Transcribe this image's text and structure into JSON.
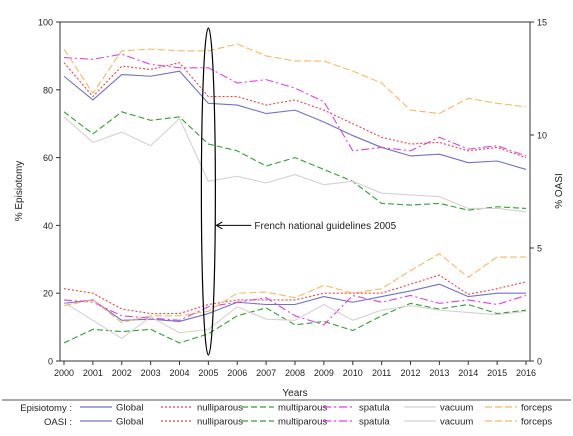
{
  "chart_data": {
    "type": "line",
    "x": [
      2000,
      2001,
      2002,
      2003,
      2004,
      2005,
      2006,
      2007,
      2008,
      2009,
      2010,
      2011,
      2012,
      2013,
      2014,
      2015,
      2016
    ],
    "xlabel": "Years",
    "ylabel_left": "% Episiotomy",
    "ylabel_right": "% OASI",
    "ylim_left": [
      0,
      100
    ],
    "ylim_right": [
      0,
      15
    ],
    "yticks_left": [
      0,
      20,
      40,
      60,
      80,
      100
    ],
    "yticks_right": [
      0,
      5,
      10,
      15
    ],
    "grid": false,
    "annotation": {
      "text": "French national guidelines 2005",
      "x": 2005,
      "y_left": 40
    },
    "legend": {
      "position": "bottom",
      "row1_label": "Episiotomy :",
      "row2_label": "OASI :",
      "entries": [
        "Global",
        "nulliparous",
        "multiparous",
        "spatula",
        "vacuum",
        "forceps"
      ]
    },
    "series_styles": {
      "Global": {
        "color": "#7070d0",
        "dash": ""
      },
      "nulliparous": {
        "color": "#f04040",
        "dash": "2,2"
      },
      "multiparous": {
        "color": "#30a030",
        "dash": "6,3"
      },
      "spatula": {
        "color": "#e040e0",
        "dash": "8,3,2,3"
      },
      "vacuum": {
        "color": "#d8d0d0",
        "dash": ""
      },
      "forceps": {
        "color": "#f8b860",
        "dash": "7,3"
      }
    },
    "series": [
      {
        "group": "Episiotomy",
        "name": "Global",
        "axis": "left",
        "values": [
          84,
          77,
          84.5,
          84,
          85.5,
          76,
          75.5,
          73,
          74,
          70.5,
          66.5,
          63,
          60.5,
          61,
          58.5,
          59,
          56.5
        ]
      },
      {
        "group": "Episiotomy",
        "name": "nulliparous",
        "axis": "left",
        "values": [
          88,
          78,
          87,
          86,
          88,
          78,
          78,
          75.5,
          77,
          74,
          70,
          66,
          64,
          64.5,
          62,
          63,
          60
        ]
      },
      {
        "group": "Episiotomy",
        "name": "multiparous",
        "axis": "left",
        "values": [
          73.5,
          67,
          73.5,
          71,
          72,
          64,
          62,
          57.5,
          60,
          56.5,
          53,
          46.5,
          46,
          46.5,
          44.5,
          45.5,
          45
        ]
      },
      {
        "group": "Episiotomy",
        "name": "spatula",
        "axis": "left",
        "values": [
          89.5,
          89,
          90.5,
          87.5,
          86.5,
          86.5,
          82,
          83,
          80.5,
          76.5,
          62,
          63,
          62,
          66,
          62.5,
          63.5,
          60.5
        ]
      },
      {
        "group": "Episiotomy",
        "name": "vacuum",
        "axis": "left",
        "values": [
          72,
          64.5,
          67.5,
          63.5,
          71.5,
          53,
          54.5,
          52.5,
          55,
          52,
          53,
          49.5,
          49,
          48.5,
          45,
          45,
          44
        ]
      },
      {
        "group": "Episiotomy",
        "name": "forceps",
        "axis": "left",
        "values": [
          92,
          79,
          91.5,
          92,
          91.5,
          91.5,
          93.5,
          90,
          88.5,
          88.5,
          85.5,
          82,
          74,
          73,
          77.5,
          76,
          75
        ]
      },
      {
        "group": "OASI",
        "name": "Global",
        "axis": "right",
        "values": [
          2.55,
          2.7,
          1.8,
          1.85,
          1.75,
          2.1,
          2.6,
          2.5,
          2.5,
          2.85,
          2.6,
          2.85,
          3.1,
          3.4,
          2.85,
          3.0,
          3.0
        ]
      },
      {
        "group": "OASI",
        "name": "nulliparous",
        "axis": "right",
        "values": [
          3.2,
          3.0,
          2.3,
          2.1,
          2.1,
          2.5,
          2.7,
          2.7,
          2.7,
          3.0,
          3.0,
          3.0,
          3.4,
          3.8,
          2.95,
          3.2,
          3.5
        ]
      },
      {
        "group": "OASI",
        "name": "multiparous",
        "axis": "right",
        "values": [
          0.8,
          1.4,
          1.3,
          1.4,
          0.8,
          1.2,
          2.0,
          2.35,
          1.6,
          1.75,
          1.35,
          2.0,
          2.55,
          2.3,
          2.5,
          2.1,
          2.25
        ]
      },
      {
        "group": "OASI",
        "name": "spatula",
        "axis": "right",
        "values": [
          2.7,
          2.6,
          2.0,
          1.9,
          1.8,
          2.4,
          2.6,
          2.8,
          2.0,
          1.6,
          2.9,
          2.6,
          2.9,
          2.55,
          2.7,
          2.5,
          2.9
        ]
      },
      {
        "group": "OASI",
        "name": "vacuum",
        "axis": "right",
        "values": [
          2.6,
          1.8,
          1.0,
          1.95,
          1.25,
          1.4,
          2.4,
          1.85,
          1.8,
          2.5,
          1.8,
          2.25,
          2.45,
          2.25,
          2.15,
          2.05,
          2.2
        ]
      },
      {
        "group": "OASI",
        "name": "forceps",
        "axis": "right",
        "values": [
          2.45,
          2.7,
          1.7,
          2.0,
          2.0,
          2.2,
          3.0,
          3.05,
          2.8,
          3.35,
          3.0,
          3.2,
          4.0,
          4.75,
          3.7,
          4.6,
          4.6
        ]
      }
    ]
  }
}
